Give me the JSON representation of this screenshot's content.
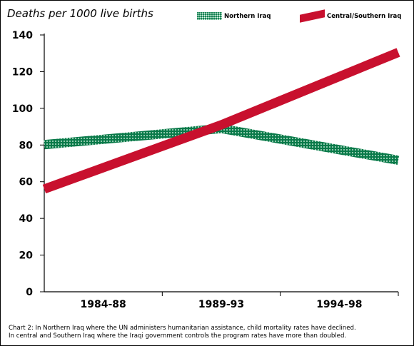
{
  "chart_data": {
    "type": "line",
    "ylabel": "Deaths per 1000 live births",
    "categories": [
      "1984-88",
      "1989-93",
      "1994-98"
    ],
    "ylim": [
      0,
      140
    ],
    "yticks": [
      0,
      20,
      40,
      60,
      80,
      100,
      120,
      140
    ],
    "series": [
      {
        "name": "Northern Iraq",
        "values": [
          80.2,
          89.0,
          71.7
        ],
        "color": "#0a7a4a",
        "pattern": "dotted"
      },
      {
        "name": "Central/Southern Iraq",
        "values": [
          56,
          91.0,
          130.5
        ],
        "color": "#c8102e",
        "pattern": "solid"
      }
    ],
    "legend_position": "top-right",
    "grid": false
  },
  "caption": {
    "line1": "Chart 2: In Northern Iraq where the UN administers humanitarian assistance, child mortality rates have declined.",
    "line2": "In central and Southern Iraq where the Iraqi government controls the program rates have more than doubled."
  }
}
